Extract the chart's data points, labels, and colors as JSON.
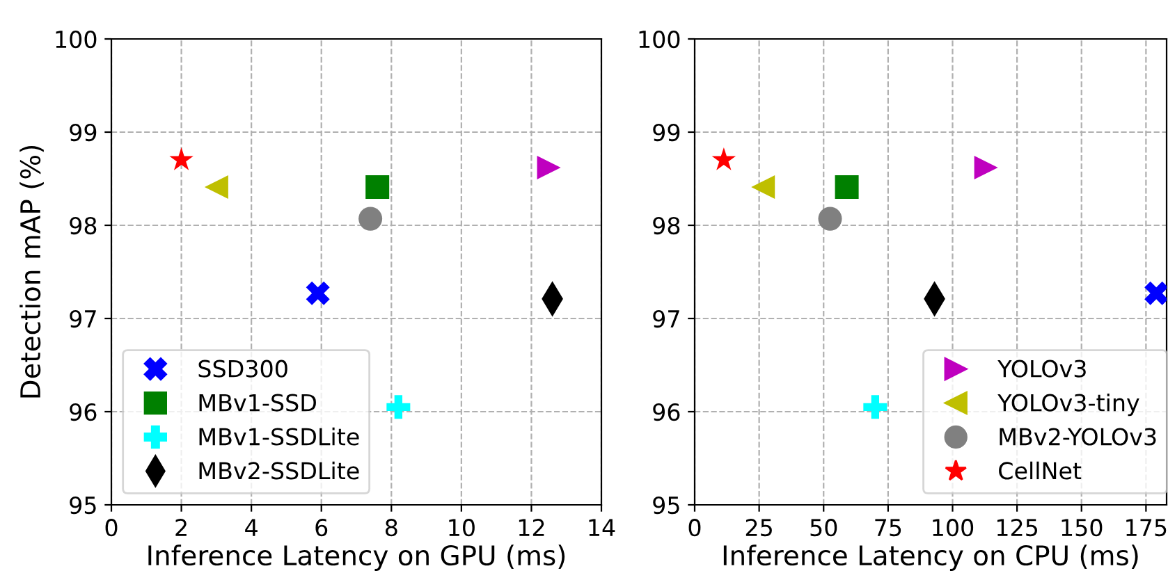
{
  "chart_data": [
    {
      "type": "scatter",
      "xlabel": "Inference Latency on GPU (ms)",
      "ylabel": "Detection mAP (%)",
      "xlim": [
        0,
        14
      ],
      "xticks": [
        0,
        2,
        4,
        6,
        8,
        10,
        12,
        14
      ],
      "ylim": [
        95,
        100
      ],
      "yticks": [
        95,
        96,
        97,
        98,
        99,
        100
      ],
      "grid": true,
      "legend": "bottom left",
      "series": [
        {
          "name": "SSD300",
          "color": "#0000ff",
          "marker": "x",
          "x": [
            5.9
          ],
          "values": [
            97.27
          ]
        },
        {
          "name": "MBv1-SSD",
          "color": "#008000",
          "marker": "square",
          "x": [
            7.6
          ],
          "values": [
            98.41
          ]
        },
        {
          "name": "MBv1-SSDLite",
          "color": "#00ffff",
          "marker": "plus",
          "x": [
            8.2
          ],
          "values": [
            96.05
          ]
        },
        {
          "name": "MBv2-SSDLite",
          "color": "#000000",
          "marker": "diamond",
          "x": [
            12.6
          ],
          "values": [
            97.21
          ]
        },
        {
          "color": "#bf00bf",
          "marker": "triangle-right",
          "x": [
            12.5
          ],
          "values": [
            98.62
          ]
        },
        {
          "color": "#bfbf00",
          "marker": "triangle-left",
          "x": [
            3.0
          ],
          "values": [
            98.41
          ]
        },
        {
          "color": "#808080",
          "marker": "circle",
          "x": [
            7.4
          ],
          "values": [
            98.07
          ]
        },
        {
          "color": "#ff0000",
          "marker": "star",
          "x": [
            2.0
          ],
          "values": [
            98.7
          ]
        }
      ]
    },
    {
      "type": "scatter",
      "xlabel": "Inference Latency on CPU (ms)",
      "xlim": [
        0,
        183
      ],
      "xticks": [
        0,
        25,
        50,
        75,
        100,
        125,
        150,
        175
      ],
      "ylim": [
        95,
        100
      ],
      "yticks": [
        95,
        96,
        97,
        98,
        99,
        100
      ],
      "grid": true,
      "legend": "bottom right",
      "series": [
        {
          "color": "#0000ff",
          "marker": "x",
          "x": [
            179
          ],
          "values": [
            97.27
          ]
        },
        {
          "color": "#008000",
          "marker": "square",
          "x": [
            59
          ],
          "values": [
            98.41
          ]
        },
        {
          "color": "#00ffff",
          "marker": "plus",
          "x": [
            70
          ],
          "values": [
            96.05
          ]
        },
        {
          "color": "#000000",
          "marker": "diamond",
          "x": [
            93
          ],
          "values": [
            97.21
          ]
        },
        {
          "name": "YOLOv3",
          "color": "#bf00bf",
          "marker": "triangle-right",
          "x": [
            113
          ],
          "values": [
            98.62
          ]
        },
        {
          "name": "YOLOv3-tiny",
          "color": "#bfbf00",
          "marker": "triangle-left",
          "x": [
            26.5
          ],
          "values": [
            98.41
          ]
        },
        {
          "name": "MBv2-YOLOv3",
          "color": "#808080",
          "marker": "circle",
          "x": [
            52.5
          ],
          "values": [
            98.07
          ]
        },
        {
          "name": "CellNet",
          "color": "#ff0000",
          "marker": "star",
          "x": [
            11.3
          ],
          "values": [
            98.7
          ]
        }
      ]
    }
  ]
}
